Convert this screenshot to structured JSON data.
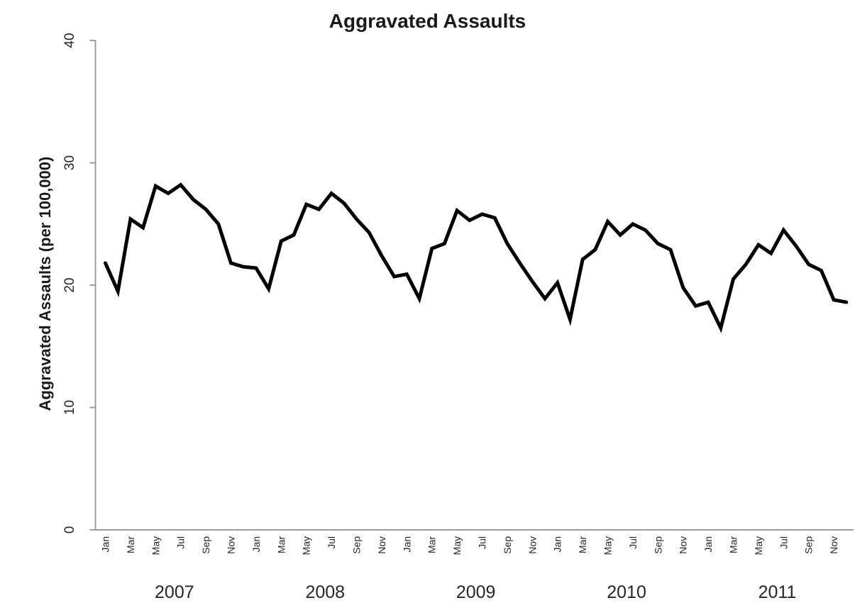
{
  "chart_data": {
    "type": "line",
    "title": "Aggravated Assaults",
    "ylabel": "Aggravated Assaults (per 100,000)",
    "xlabel": "",
    "ylim": [
      0,
      40
    ],
    "yticks": [
      0,
      10,
      20,
      30,
      40
    ],
    "grid": false,
    "legend": "none",
    "years": [
      "2007",
      "2008",
      "2009",
      "2010",
      "2011"
    ],
    "x_tick_labels_per_year": [
      "Jan",
      "Mar",
      "May",
      "Jul",
      "Sep",
      "Nov"
    ],
    "line_style": {
      "color": "#000000",
      "width": 5
    },
    "axis_style": {
      "color": "#9c9c9c",
      "width": 2
    },
    "series": [
      {
        "name": "Aggravated Assaults (per 100,000)",
        "values_by_year": {
          "2007": [
            21.8,
            19.5,
            25.4,
            24.7,
            28.1,
            27.5,
            28.2,
            27.0,
            26.2,
            25.0,
            21.8,
            21.5
          ],
          "2008": [
            21.4,
            19.7,
            23.6,
            24.1,
            26.6,
            26.2,
            27.5,
            26.7,
            25.4,
            24.3,
            22.4,
            20.7
          ],
          "2009": [
            20.9,
            18.9,
            23.0,
            23.4,
            26.1,
            25.3,
            25.8,
            25.5,
            23.4,
            21.8,
            20.3,
            18.9
          ],
          "2010": [
            20.2,
            17.2,
            22.1,
            22.9,
            25.2,
            24.1,
            25.0,
            24.5,
            23.4,
            22.9,
            19.8,
            18.3
          ],
          "2011": [
            18.6,
            16.5,
            20.5,
            21.7,
            23.3,
            22.6,
            24.5,
            23.2,
            21.7,
            21.2,
            18.8,
            18.6
          ]
        }
      }
    ]
  }
}
